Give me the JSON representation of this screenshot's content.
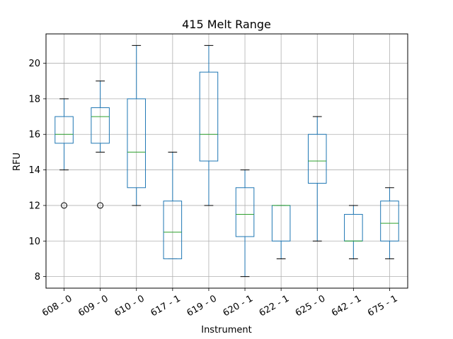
{
  "chart_data": {
    "type": "boxplot",
    "title": "415 Melt Range",
    "xlabel": "Instrument",
    "ylabel": "RFU",
    "ylim": [
      7.35,
      21.65
    ],
    "yticks": [
      8,
      10,
      12,
      14,
      16,
      18,
      20
    ],
    "grid": true,
    "categories": [
      "608 - 0",
      "609 - 0",
      "610 - 0",
      "617 - 1",
      "619 - 0",
      "620 - 1",
      "622 - 1",
      "625 - 0",
      "642 - 1",
      "675 - 1"
    ],
    "boxes": [
      {
        "whisker_low": 14,
        "q1": 15.5,
        "median": 16,
        "q3": 17,
        "whisker_high": 18,
        "outliers": [
          12
        ]
      },
      {
        "whisker_low": 15,
        "q1": 15.5,
        "median": 17,
        "q3": 17.5,
        "whisker_high": 19,
        "outliers": [
          12
        ]
      },
      {
        "whisker_low": 12,
        "q1": 13,
        "median": 15,
        "q3": 18,
        "whisker_high": 21,
        "outliers": []
      },
      {
        "whisker_low": 9,
        "q1": 9,
        "median": 10.5,
        "q3": 12.25,
        "whisker_high": 15,
        "outliers": []
      },
      {
        "whisker_low": 12,
        "q1": 14.5,
        "median": 16,
        "q3": 19.5,
        "whisker_high": 21,
        "outliers": []
      },
      {
        "whisker_low": 8,
        "q1": 10.25,
        "median": 11.5,
        "q3": 13,
        "whisker_high": 14,
        "outliers": []
      },
      {
        "whisker_low": 9,
        "q1": 10,
        "median": 12,
        "q3": 12,
        "whisker_high": 12,
        "outliers": []
      },
      {
        "whisker_low": 10,
        "q1": 13.25,
        "median": 14.5,
        "q3": 16,
        "whisker_high": 17,
        "outliers": []
      },
      {
        "whisker_low": 9,
        "q1": 10,
        "median": 10,
        "q3": 11.5,
        "whisker_high": 12,
        "outliers": []
      },
      {
        "whisker_low": 9,
        "q1": 10,
        "median": 11,
        "q3": 12.25,
        "whisker_high": 13,
        "outliers": []
      }
    ],
    "colors": {
      "box": "#1f77b4",
      "median": "#2ca02c",
      "whisker_cap": "#000000",
      "grid": "#b0b0b0",
      "outlier": "#000000"
    }
  }
}
